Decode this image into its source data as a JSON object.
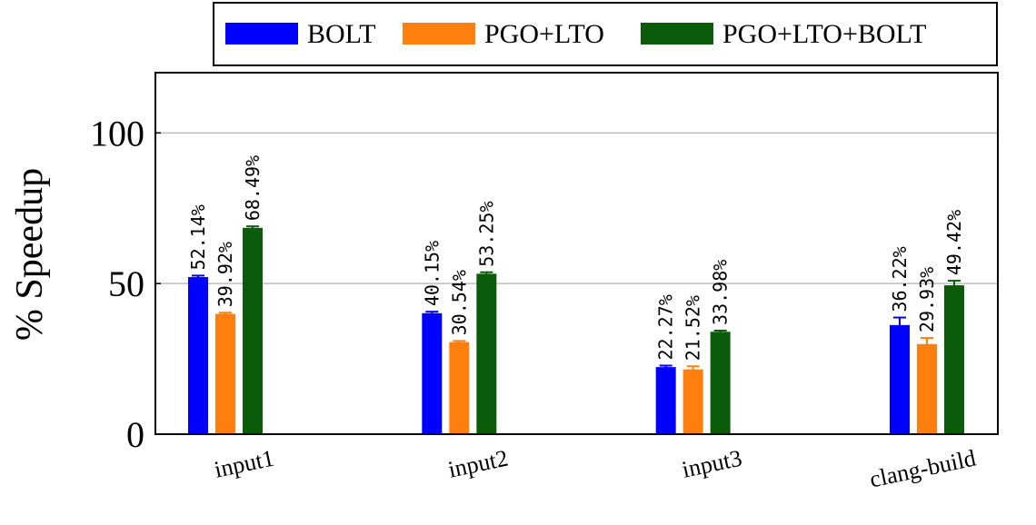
{
  "chart_data": {
    "type": "bar",
    "title": "",
    "xlabel": "",
    "ylabel": "% Speedup",
    "ylim": [
      0,
      120
    ],
    "yticks": [
      0,
      50,
      100
    ],
    "grid": "horizontal",
    "legend_position": "top-right",
    "categories": [
      "input1",
      "input2",
      "input3",
      "clang-build"
    ],
    "series": [
      {
        "name": "BOLT",
        "color": "#0000ff",
        "values": [
          52.14,
          40.15,
          22.27,
          36.22
        ],
        "errors": [
          0.5,
          0.5,
          0.5,
          2.5
        ],
        "labels": [
          "52.14%",
          "40.15%",
          "22.27%",
          "36.22%"
        ]
      },
      {
        "name": "PGO+LTO",
        "color": "#ff7f0e",
        "values": [
          39.92,
          30.54,
          21.52,
          29.93
        ],
        "errors": [
          0.4,
          0.4,
          1.0,
          2.0
        ],
        "labels": [
          "39.92%",
          "30.54%",
          "21.52%",
          "29.93%"
        ]
      },
      {
        "name": "PGO+LTO+BOLT",
        "color": "#0a5c0a",
        "values": [
          68.49,
          53.25,
          33.98,
          49.42
        ],
        "errors": [
          0.5,
          0.5,
          0.4,
          1.5
        ],
        "labels": [
          "68.49%",
          "53.25%",
          "33.98%",
          "49.42%"
        ]
      }
    ]
  }
}
